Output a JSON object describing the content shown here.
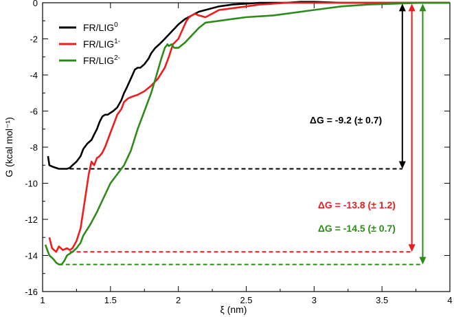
{
  "chart_data": {
    "type": "line",
    "title": "",
    "xlabel": "ξ (nm)",
    "ylabel": "G (kcal mol⁻¹)",
    "xlim": [
      1,
      4
    ],
    "ylim": [
      -16,
      0
    ],
    "xticks": [
      1,
      1.5,
      2,
      2.5,
      3,
      3.5,
      4
    ],
    "yticks": [
      0,
      -2,
      -4,
      -6,
      -8,
      -10,
      -12,
      -14,
      -16
    ],
    "xtick_labels": [
      "1",
      "1.5",
      "2",
      "2.5",
      "3",
      "3.5",
      "4"
    ],
    "ytick_labels": [
      "0",
      "-2",
      "-4",
      "-6",
      "-8",
      "-10",
      "-12",
      "-14",
      "-16"
    ],
    "grid": false,
    "legend_position": "top-left",
    "series": [
      {
        "name": "FR/LIG",
        "name_sup": "0",
        "color": "#000000",
        "x": [
          1.04,
          1.05,
          1.08,
          1.12,
          1.15,
          1.18,
          1.2,
          1.22,
          1.25,
          1.28,
          1.3,
          1.33,
          1.36,
          1.38,
          1.4,
          1.42,
          1.44,
          1.46,
          1.48,
          1.5,
          1.52,
          1.55,
          1.58,
          1.6,
          1.62,
          1.65,
          1.68,
          1.7,
          1.72,
          1.75,
          1.78,
          1.8,
          1.83,
          1.86,
          1.9,
          1.95,
          2.0,
          2.05,
          2.1,
          2.15,
          2.2,
          2.25,
          2.3,
          2.4,
          2.5,
          2.6,
          2.7,
          2.8,
          2.9,
          3.0,
          3.2,
          3.4,
          3.6,
          3.8,
          4.0
        ],
        "y": [
          -8.5,
          -9.0,
          -9.1,
          -9.2,
          -9.2,
          -9.2,
          -9.15,
          -9.0,
          -8.8,
          -8.5,
          -8.1,
          -7.8,
          -7.6,
          -7.3,
          -7.0,
          -6.6,
          -6.3,
          -6.2,
          -6.2,
          -6.1,
          -6.0,
          -5.8,
          -5.4,
          -5.0,
          -4.7,
          -4.2,
          -3.7,
          -3.6,
          -3.6,
          -3.4,
          -3.1,
          -2.8,
          -2.5,
          -2.3,
          -2.0,
          -1.6,
          -1.2,
          -0.9,
          -0.7,
          -0.5,
          -0.4,
          -0.3,
          -0.2,
          -0.1,
          -0.05,
          0.0,
          0.0,
          0.0,
          0.05,
          0.05,
          0.0,
          0.0,
          0.0,
          0.0,
          0.0
        ]
      },
      {
        "name": "FR/LIG",
        "name_sup": "1-",
        "color": "#ee1c1c",
        "x": [
          1.05,
          1.07,
          1.1,
          1.12,
          1.15,
          1.18,
          1.2,
          1.22,
          1.25,
          1.28,
          1.3,
          1.32,
          1.34,
          1.36,
          1.38,
          1.4,
          1.42,
          1.44,
          1.46,
          1.48,
          1.5,
          1.52,
          1.55,
          1.58,
          1.6,
          1.63,
          1.66,
          1.7,
          1.75,
          1.8,
          1.85,
          1.9,
          1.93,
          1.96,
          2.0,
          2.03,
          2.06,
          2.08,
          2.1,
          2.12,
          2.15,
          2.2,
          2.25,
          2.3,
          2.4,
          2.5,
          2.6,
          2.8,
          3.0,
          3.2,
          3.4,
          3.6,
          3.8,
          4.0
        ],
        "y": [
          -13.0,
          -13.6,
          -13.8,
          -13.5,
          -13.7,
          -13.6,
          -13.7,
          -13.6,
          -13.2,
          -12.5,
          -11.5,
          -10.5,
          -9.5,
          -8.8,
          -9.0,
          -8.6,
          -8.5,
          -8.3,
          -8.0,
          -7.6,
          -7.2,
          -6.8,
          -6.2,
          -5.9,
          -5.5,
          -5.3,
          -5.2,
          -5.1,
          -4.9,
          -4.6,
          -4.2,
          -3.6,
          -3.0,
          -2.3,
          -2.0,
          -1.5,
          -1.0,
          -0.8,
          -0.7,
          -0.6,
          -0.7,
          -0.8,
          -0.6,
          -0.4,
          -0.3,
          -0.2,
          -0.1,
          0.0,
          0.0,
          0.0,
          0.0,
          0.0,
          0.0,
          0.0
        ]
      },
      {
        "name": "FR/LIG",
        "name_sup": "2-",
        "color": "#2e8b1a",
        "x": [
          1.02,
          1.05,
          1.08,
          1.1,
          1.12,
          1.14,
          1.16,
          1.18,
          1.2,
          1.22,
          1.25,
          1.28,
          1.3,
          1.35,
          1.4,
          1.45,
          1.5,
          1.55,
          1.6,
          1.65,
          1.7,
          1.75,
          1.8,
          1.84,
          1.87,
          1.9,
          1.92,
          1.93,
          1.95,
          1.97,
          2.0,
          2.05,
          2.1,
          2.15,
          2.2,
          2.3,
          2.4,
          2.5,
          2.6,
          2.7,
          2.8,
          3.0,
          3.2,
          3.4,
          3.6,
          3.8,
          4.0
        ],
        "y": [
          -13.4,
          -14.0,
          -14.2,
          -14.4,
          -14.5,
          -14.5,
          -14.3,
          -14.0,
          -13.9,
          -13.8,
          -13.6,
          -13.3,
          -12.9,
          -12.3,
          -11.6,
          -10.8,
          -10.0,
          -9.5,
          -9.0,
          -8.2,
          -7.0,
          -6.0,
          -5.0,
          -4.0,
          -3.2,
          -2.5,
          -2.3,
          -2.4,
          -2.3,
          -2.5,
          -2.5,
          -2.2,
          -1.8,
          -1.4,
          -1.1,
          -1.0,
          -0.9,
          -0.8,
          -0.75,
          -0.7,
          -0.6,
          -0.4,
          -0.2,
          -0.1,
          -0.05,
          0.0,
          0.0
        ]
      }
    ],
    "baselines": [
      {
        "color": "#000000",
        "y": -9.2,
        "x_start": 1.2,
        "x_end": 3.65
      },
      {
        "color": "#ee1c1c",
        "y": -13.8,
        "x_start": 1.2,
        "x_end": 3.72
      },
      {
        "color": "#2e8b1a",
        "y": -14.5,
        "x_start": 1.12,
        "x_end": 3.8
      }
    ],
    "arrows": [
      {
        "color": "#000000",
        "x": 3.65,
        "y_top": -0.05,
        "y_bottom": -9.2
      },
      {
        "color": "#ee1c1c",
        "x": 3.72,
        "y_top": -0.05,
        "y_bottom": -13.8
      },
      {
        "color": "#2e8b1a",
        "x": 3.8,
        "y_top": -0.05,
        "y_bottom": -14.5
      }
    ],
    "annotations": [
      {
        "text": "ΔG = -9.2 (± 0.7)",
        "color": "#000000",
        "anchor_x": 3.5,
        "anchor_y": -6.5
      },
      {
        "text": "ΔG = -13.8 (± 1.2)",
        "color": "#ee1c1c",
        "anchor_x": 3.6,
        "anchor_y": -11.2
      },
      {
        "text": "ΔG = -14.5 (± 0.7)",
        "color": "#2e8b1a",
        "anchor_x": 3.6,
        "anchor_y": -12.5
      }
    ]
  }
}
